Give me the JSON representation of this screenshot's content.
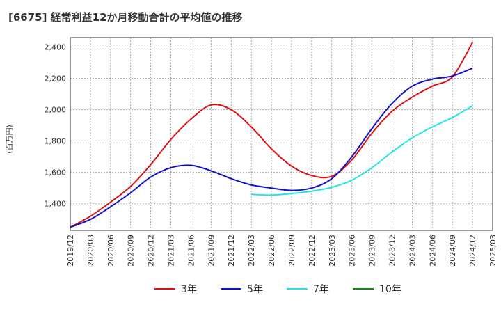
{
  "chart_data": {
    "type": "line",
    "title": "[6675]  経常利益12か月移動合計の平均値の推移",
    "ylabel": "(百万円)",
    "xlabel": "",
    "ylim": [
      1230,
      2460
    ],
    "yticks": [
      1400,
      1600,
      1800,
      2000,
      2200,
      2400
    ],
    "ytick_labels": [
      "1,400",
      "1,600",
      "1,800",
      "2,000",
      "2,200",
      "2,400"
    ],
    "xticks": [
      "2019/12",
      "2020/03",
      "2020/06",
      "2020/09",
      "2020/12",
      "2021/03",
      "2021/06",
      "2021/09",
      "2021/12",
      "2022/03",
      "2022/06",
      "2022/09",
      "2022/12",
      "2023/03",
      "2023/06",
      "2023/09",
      "2023/12",
      "2024/03",
      "2024/06",
      "2024/09",
      "2024/12",
      "2025/03"
    ],
    "grid": true,
    "legend_position": "bottom",
    "series": [
      {
        "name": "3年",
        "color": "#dd1111",
        "points": [
          [
            "2019/12",
            1250
          ],
          [
            "2020/03",
            1320
          ],
          [
            "2020/06",
            1410
          ],
          [
            "2020/09",
            1510
          ],
          [
            "2020/12",
            1650
          ],
          [
            "2021/03",
            1810
          ],
          [
            "2021/06",
            1940
          ],
          [
            "2021/09",
            2030
          ],
          [
            "2021/12",
            2000
          ],
          [
            "2022/03",
            1890
          ],
          [
            "2022/06",
            1750
          ],
          [
            "2022/09",
            1640
          ],
          [
            "2022/12",
            1580
          ],
          [
            "2023/03",
            1575
          ],
          [
            "2023/06",
            1680
          ],
          [
            "2023/09",
            1850
          ],
          [
            "2023/12",
            1990
          ],
          [
            "2024/03",
            2080
          ],
          [
            "2024/06",
            2150
          ],
          [
            "2024/09",
            2210
          ],
          [
            "2024/12",
            2430
          ]
        ]
      },
      {
        "name": "5年",
        "color": "#1111cc",
        "points": [
          [
            "2019/12",
            1250
          ],
          [
            "2020/03",
            1300
          ],
          [
            "2020/06",
            1380
          ],
          [
            "2020/09",
            1470
          ],
          [
            "2020/12",
            1570
          ],
          [
            "2021/03",
            1630
          ],
          [
            "2021/06",
            1645
          ],
          [
            "2021/09",
            1610
          ],
          [
            "2021/12",
            1560
          ],
          [
            "2022/03",
            1520
          ],
          [
            "2022/06",
            1500
          ],
          [
            "2022/09",
            1485
          ],
          [
            "2022/12",
            1500
          ],
          [
            "2023/03",
            1560
          ],
          [
            "2023/06",
            1700
          ],
          [
            "2023/09",
            1880
          ],
          [
            "2023/12",
            2040
          ],
          [
            "2024/03",
            2150
          ],
          [
            "2024/06",
            2195
          ],
          [
            "2024/09",
            2215
          ],
          [
            "2024/12",
            2265
          ]
        ]
      },
      {
        "name": "7年",
        "color": "#22e5e5",
        "points": [
          [
            "2022/03",
            1460
          ],
          [
            "2022/06",
            1455
          ],
          [
            "2022/09",
            1465
          ],
          [
            "2022/12",
            1480
          ],
          [
            "2023/03",
            1505
          ],
          [
            "2023/06",
            1550
          ],
          [
            "2023/09",
            1630
          ],
          [
            "2023/12",
            1730
          ],
          [
            "2024/03",
            1820
          ],
          [
            "2024/06",
            1890
          ],
          [
            "2024/09",
            1950
          ],
          [
            "2024/12",
            2025
          ]
        ]
      },
      {
        "name": "10年",
        "color": "#118811",
        "points": []
      }
    ]
  }
}
